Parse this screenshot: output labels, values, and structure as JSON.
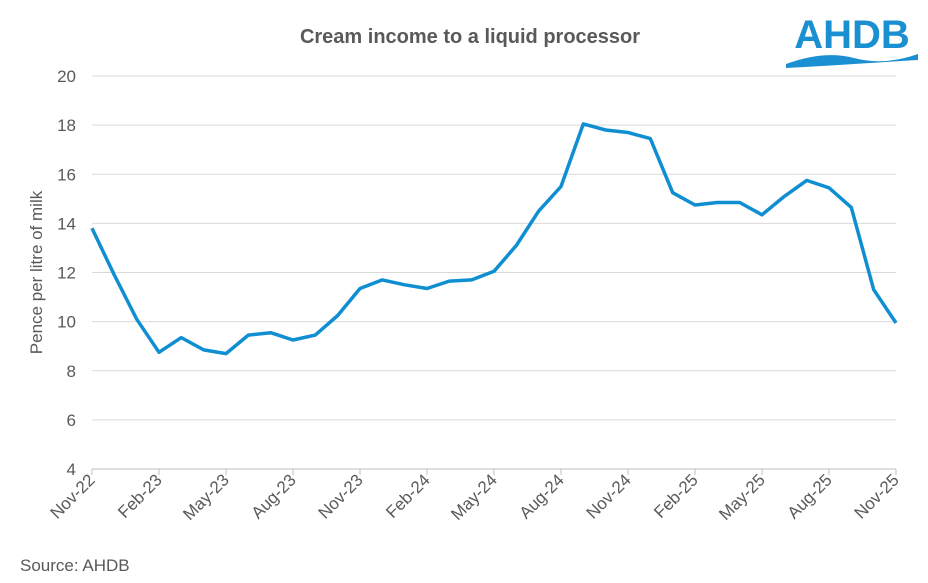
{
  "header": {
    "title": "Cream income to a liquid processor",
    "logo_text": "AHDB"
  },
  "footer": {
    "source": "Source: AHDB"
  },
  "colors": {
    "line": "#0f8fd1",
    "grid": "#d9d9d9",
    "text": "#595959",
    "logo": "#1a8fd1"
  },
  "chart_data": {
    "type": "line",
    "title": "Cream income to a liquid processor",
    "xlabel": "",
    "ylabel": "Pence per litre of milk",
    "ylim": [
      4,
      20
    ],
    "yticks": [
      4,
      6,
      8,
      10,
      12,
      14,
      16,
      18,
      20
    ],
    "grid": true,
    "xtick_labels": [
      "Nov-22",
      "Feb-23",
      "May-23",
      "Aug-23",
      "Nov-23",
      "Feb-24",
      "May-24",
      "Aug-24",
      "Nov-24",
      "Feb-25",
      "May-25",
      "Aug-25",
      "Nov-25"
    ],
    "x": [
      "Nov-22",
      "Dec-22",
      "Jan-23",
      "Feb-23",
      "Mar-23",
      "Apr-23",
      "May-23",
      "Jun-23",
      "Jul-23",
      "Aug-23",
      "Sep-23",
      "Oct-23",
      "Nov-23",
      "Dec-23",
      "Jan-24",
      "Feb-24",
      "Mar-24",
      "Apr-24",
      "May-24",
      "Jun-24",
      "Jul-24",
      "Aug-24",
      "Sep-24",
      "Oct-24",
      "Nov-24",
      "Dec-24",
      "Jan-25",
      "Feb-25",
      "Mar-25",
      "Apr-25",
      "May-25",
      "Jun-25",
      "Jul-25",
      "Aug-25",
      "Sep-25",
      "Oct-25",
      "Nov-25"
    ],
    "series": [
      {
        "values": [
          13.8,
          11.9,
          10.1,
          8.75,
          9.35,
          8.85,
          8.7,
          9.45,
          9.55,
          9.25,
          9.45,
          10.25,
          11.35,
          11.7,
          11.5,
          11.35,
          11.65,
          11.7,
          12.05,
          13.1,
          14.5,
          15.5,
          18.05,
          17.8,
          17.7,
          17.45,
          15.25,
          14.75,
          14.85,
          14.85,
          14.35,
          15.1,
          15.75,
          15.45,
          14.65,
          11.3,
          9.95
        ]
      }
    ]
  }
}
